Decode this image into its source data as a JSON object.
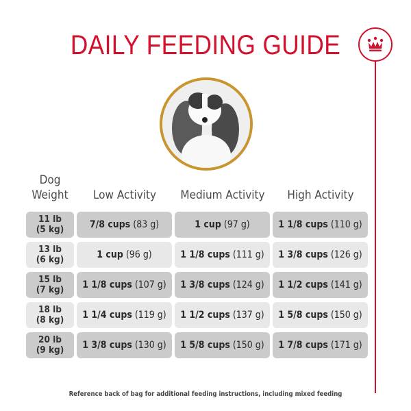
{
  "title": "DAILY FEEDING GUIDE",
  "brand_icon": "crown-icon",
  "colors": {
    "accent": "#d2112c",
    "gold_ring": "#c9952f",
    "row_dark": "#cbcbcb",
    "row_light": "#e8e8e8"
  },
  "table": {
    "weight_header_line1": "Dog",
    "weight_header_line2": "Weight",
    "columns": [
      "Low Activity",
      "Medium Activity",
      "High Activity"
    ],
    "rows": [
      {
        "lb": "11 lb",
        "kg": "(5 kg)",
        "low": {
          "cups": "7/8 cups",
          "grams": "(83 g)"
        },
        "medium": {
          "cups": "1 cup",
          "grams": "(97 g)"
        },
        "high": {
          "cups": "1 1/8 cups",
          "grams": "(110 g)"
        }
      },
      {
        "lb": "13 lb",
        "kg": "(6 kg)",
        "low": {
          "cups": "1 cup",
          "grams": "(96 g)"
        },
        "medium": {
          "cups": "1 1/8 cups",
          "grams": "(111 g)"
        },
        "high": {
          "cups": "1 3/8 cups",
          "grams": "(126 g)"
        }
      },
      {
        "lb": "15 lb",
        "kg": "(7 kg)",
        "low": {
          "cups": "1 1/8 cups",
          "grams": "(107 g)"
        },
        "medium": {
          "cups": "1 3/8 cups",
          "grams": "(124 g)"
        },
        "high": {
          "cups": "1 1/2 cups",
          "grams": "(141 g)"
        }
      },
      {
        "lb": "18 lb",
        "kg": "(8 kg)",
        "low": {
          "cups": "1 1/4 cups",
          "grams": "(119 g)"
        },
        "medium": {
          "cups": "1 1/2 cups",
          "grams": "(137 g)"
        },
        "high": {
          "cups": "1 5/8 cups",
          "grams": "(150 g)"
        }
      },
      {
        "lb": "20 lb",
        "kg": "(9 kg)",
        "low": {
          "cups": "1 3/8 cups",
          "grams": "(130 g)"
        },
        "medium": {
          "cups": "1 5/8 cups",
          "grams": "(150 g)"
        },
        "high": {
          "cups": "1 7/8 cups",
          "grams": "(171 g)"
        }
      }
    ]
  },
  "footer": "Reference back of bag for additional feeding instructions, including mixed feeding"
}
